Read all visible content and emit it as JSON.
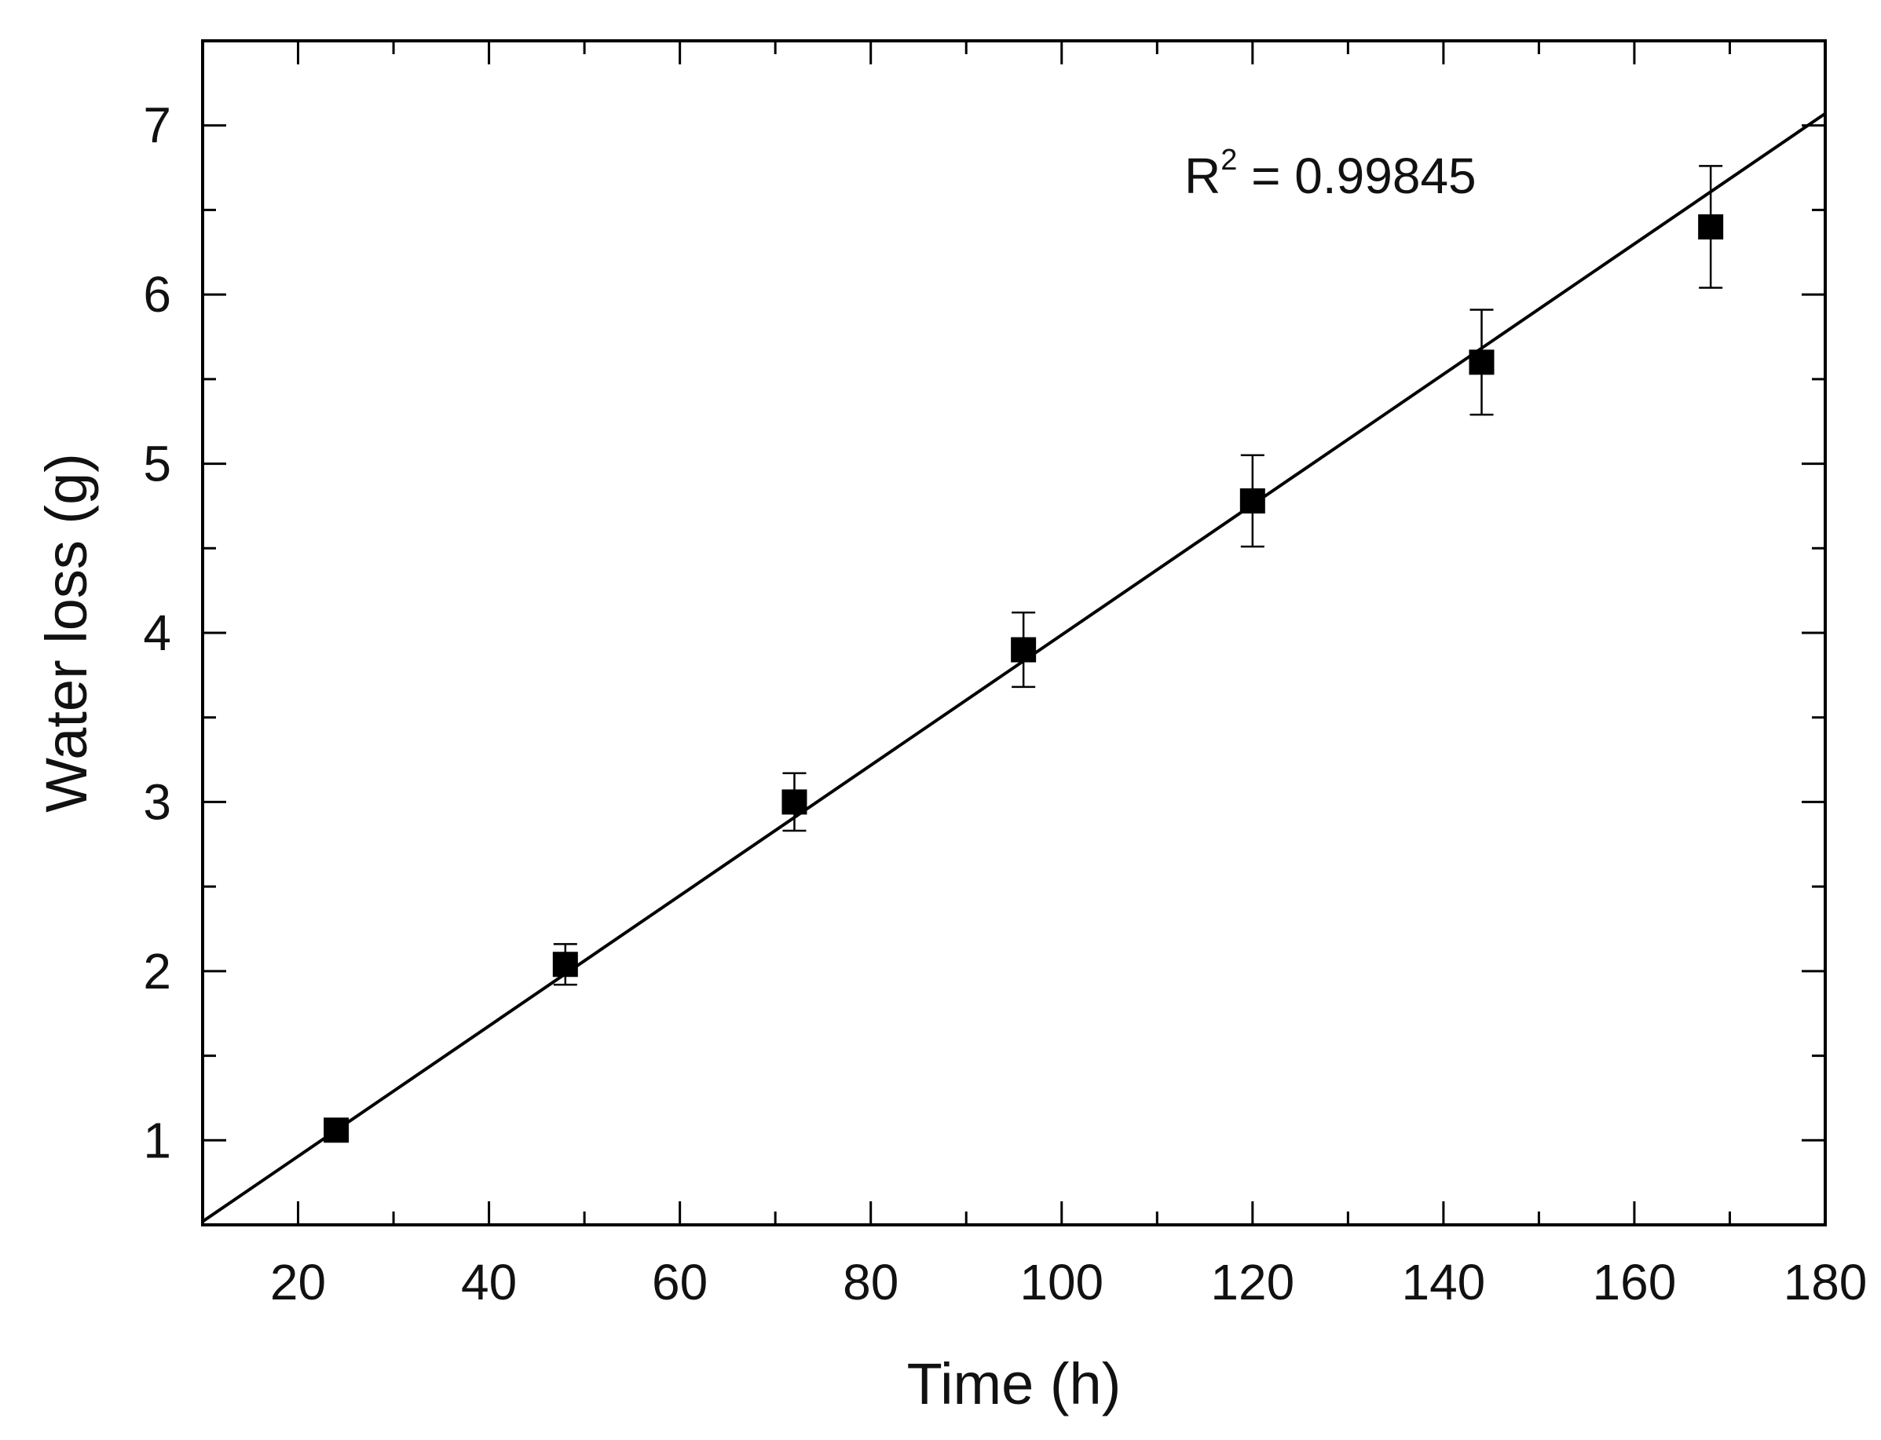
{
  "chart_data": {
    "type": "scatter",
    "title": "",
    "xlabel": "Time (h)",
    "ylabel": "Water loss (g)",
    "xlim": [
      10,
      180
    ],
    "ylim": [
      0.5,
      7.5
    ],
    "x_ticks": [
      20,
      40,
      60,
      80,
      100,
      120,
      140,
      160,
      180
    ],
    "y_ticks": [
      1,
      2,
      3,
      4,
      5,
      6,
      7
    ],
    "grid": false,
    "legend": "none",
    "series": [
      {
        "marker": "square",
        "x": [
          24,
          48,
          72,
          96,
          120,
          144,
          168
        ],
        "y": [
          1.06,
          2.04,
          3.0,
          3.9,
          4.78,
          5.6,
          6.4
        ],
        "error": [
          0.03,
          0.12,
          0.17,
          0.22,
          0.27,
          0.31,
          0.36
        ]
      }
    ],
    "fit_line": {
      "type": "linear",
      "x": [
        10,
        180
      ],
      "y": [
        0.52,
        7.07
      ]
    },
    "annotation": {
      "label_base": "R",
      "label_sup": "2",
      "label_rest": " = 0.99845"
    },
    "colors": {
      "marker": "#000000",
      "line": "#000000",
      "axis": "#000000"
    }
  }
}
